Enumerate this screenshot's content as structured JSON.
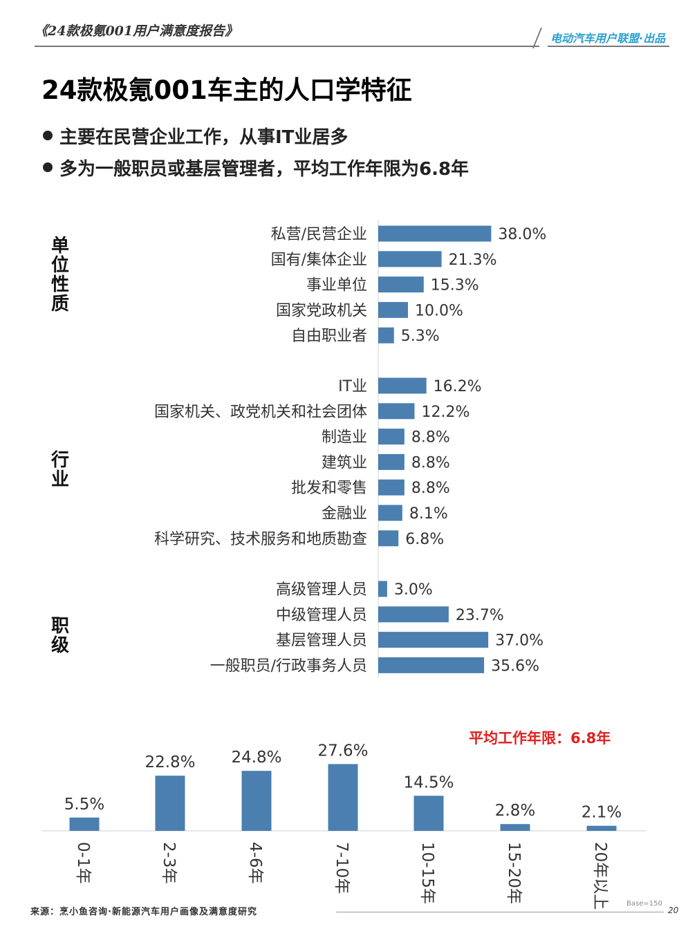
{
  "header": {
    "report_title": "《24款极氪001用户满意度报告》",
    "brand": "电动汽车用户联盟·出品"
  },
  "page_title": "24款极氪001车主的人口学特征",
  "bullets": [
    "主要在民营企业工作，从事IT业居多",
    "多为一般职员或基层管理者，平均工作年限为6.8年"
  ],
  "colors": {
    "bar": "#4a7fb0",
    "axis": "#d0d0d0",
    "highlight": "#e02020"
  },
  "chart_data": [
    {
      "type": "bar",
      "orientation": "horizontal",
      "groups": [
        {
          "label": "单位性质",
          "categories": [
            "私营/民营企业",
            "国有/集体企业",
            "事业单位",
            "国家党政机关",
            "自由职业者"
          ],
          "values": [
            38.0,
            21.3,
            15.3,
            10.0,
            5.3
          ],
          "value_labels": [
            "38.0%",
            "21.3%",
            "15.3%",
            "10.0%",
            "5.3%"
          ]
        },
        {
          "label": "行业",
          "categories": [
            "IT业",
            "国家机关、政党机关和社会团体",
            "制造业",
            "建筑业",
            "批发和零售",
            "金融业",
            "科学研究、技术服务和地质勘查"
          ],
          "values": [
            16.2,
            12.2,
            8.8,
            8.8,
            8.8,
            8.1,
            6.8
          ],
          "value_labels": [
            "16.2%",
            "12.2%",
            "8.8%",
            "8.8%",
            "8.8%",
            "8.1%",
            "6.8%"
          ]
        },
        {
          "label": "职级",
          "categories": [
            "高级管理人员",
            "中级管理人员",
            "基层管理人员",
            "一般职员/行政事务人员"
          ],
          "values": [
            3.0,
            23.7,
            37.0,
            35.6
          ],
          "value_labels": [
            "3.0%",
            "23.7%",
            "37.0%",
            "35.6%"
          ]
        }
      ]
    },
    {
      "type": "bar",
      "orientation": "vertical",
      "categories": [
        "0-1年",
        "2-3年",
        "4-6年",
        "7-10年",
        "10-15年",
        "15-20年",
        "20年以上"
      ],
      "values": [
        5.5,
        22.8,
        24.8,
        27.6,
        14.5,
        2.8,
        2.1
      ],
      "value_labels": [
        "5.5%",
        "22.8%",
        "24.8%",
        "27.6%",
        "14.5%",
        "2.8%",
        "2.1%"
      ],
      "annotation": "平均工作年限：6.8年"
    }
  ],
  "footer": {
    "source": "来源：烹小鱼咨询·新能源汽车用户画像及满意度研究",
    "base": "Base=150",
    "page_number": "20"
  }
}
